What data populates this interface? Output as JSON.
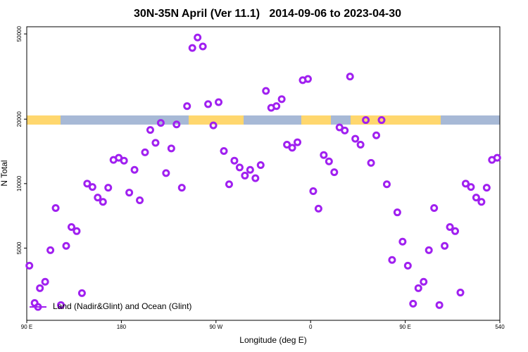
{
  "chart_data": {
    "type": "scatter",
    "title": "30N-35N April (Ver 11.1)   2014-09-06 to 2023-04-30",
    "x_label": "Longitude (deg E)",
    "y_label": "N Total",
    "xlim": [
      90,
      540
    ],
    "xticks": [
      {
        "value": 90,
        "label": "90 E"
      },
      180,
      {
        "value": 270,
        "label": "90 W"
      },
      {
        "value": 360,
        "label": "0"
      },
      {
        "value": 450,
        "label": "90 E"
      },
      540
    ],
    "ylim": [
      2300,
      54000
    ],
    "yticks": [
      5000,
      10000,
      20000,
      50000
    ],
    "y_scale": "log",
    "legend": "bottom-left",
    "series": [
      {
        "name": "Land (Nadir&Glint) and Ocean (Glint)",
        "color": "#a020f0",
        "x": [
          92.5,
          97.5,
          102.5,
          107.5,
          112.5,
          117.5,
          122.5,
          127.5,
          132.5,
          137.5,
          142.5,
          147.5,
          152.5,
          157.5,
          162.5,
          167.5,
          172.5,
          177.5,
          182.5,
          187.5,
          192.5,
          197.5,
          202.5,
          207.5,
          212.5,
          217.5,
          222.5,
          227.5,
          232.5,
          237.5,
          242.5,
          247.5,
          252.5,
          257.5,
          262.5,
          267.5,
          272.5,
          277.5,
          282.5,
          287.5,
          292.5,
          297.5,
          302.5,
          307.5,
          312.5,
          317.5,
          322.5,
          327.5,
          332.5,
          337.5,
          342.5,
          347.5,
          352.5,
          357.5,
          362.5,
          367.5,
          372.5,
          377.5,
          382.5,
          387.5,
          392.5,
          397.5,
          402.5,
          407.5,
          412.5,
          417.5,
          422.5,
          427.5,
          432.5,
          437.5,
          442.5,
          447.5,
          452.5,
          457.5,
          462.5,
          467.5,
          472.5,
          477.5,
          482.5,
          487.5,
          492.5,
          497.5,
          502.5,
          507.5,
          512.5,
          517.5,
          522.5,
          527.5,
          532.5,
          537.5
        ],
        "values": [
          4140,
          2770,
          3250,
          3480,
          4890,
          7690,
          2710,
          5120,
          6270,
          6000,
          3080,
          10000,
          9640,
          8610,
          8220,
          9570,
          12900,
          13200,
          12800,
          9080,
          11600,
          8360,
          14000,
          17800,
          15500,
          19200,
          11200,
          14600,
          18900,
          9570,
          23000,
          43000,
          48100,
          43700,
          23500,
          18700,
          24000,
          14200,
          9930,
          12800,
          11900,
          10900,
          11600,
          10600,
          12200,
          27100,
          22600,
          23000,
          24800,
          15200,
          14700,
          15600,
          30400,
          30800,
          9220,
          7640,
          13600,
          12700,
          11300,
          18300,
          17700,
          31600,
          16200,
          15200,
          19800,
          12500,
          16800,
          19800,
          9930,
          4400,
          7340,
          5360,
          4140,
          2750,
          3250,
          3480,
          4890,
          7690,
          2710,
          5120,
          6270,
          6000,
          3100,
          10000,
          9640,
          8610,
          8220,
          9570,
          12900,
          13200
        ]
      }
    ]
  }
}
